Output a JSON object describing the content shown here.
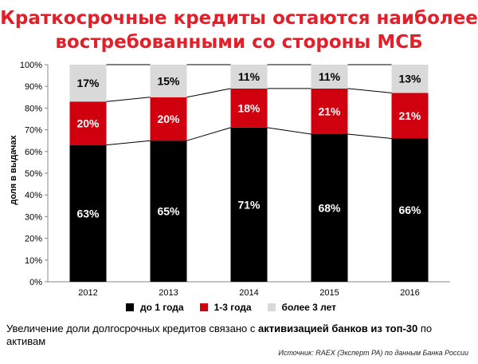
{
  "title": {
    "line1": "Краткосрочные кредиты остаются наиболее",
    "line2": "востребованными со стороны МСБ"
  },
  "chart_data": {
    "type": "bar",
    "stacked": true,
    "percent": true,
    "categories": [
      "2012",
      "2013",
      "2014",
      "2015",
      "2016"
    ],
    "series": [
      {
        "name": "до 1 года",
        "values": [
          63,
          65,
          71,
          68,
          66
        ],
        "color": "#000000",
        "label_color": "#ffffff"
      },
      {
        "name": "1-3 года",
        "values": [
          20,
          20,
          18,
          21,
          21
        ],
        "color": "#d0000e",
        "label_color": "#ffffff"
      },
      {
        "name": "более 3 лет",
        "values": [
          17,
          15,
          11,
          11,
          13
        ],
        "color": "#d9d9d9",
        "label_color": "#000000"
      }
    ],
    "ylabel": "доля в выдачах",
    "ylim": [
      0,
      100
    ],
    "yticks": [
      "0%",
      "10%",
      "20%",
      "30%",
      "40%",
      "50%",
      "60%",
      "70%",
      "80%",
      "90%",
      "100%"
    ],
    "connector_lines": true,
    "legend_position": "bottom"
  },
  "note": {
    "pre": "Увеличение  доли долгосрочных кредитов связано с ",
    "bold": "активизацией банков  из топ-30",
    "post": " по активам"
  },
  "source": "Источник: RAEX (Эксперт РА) по данным  Банка России"
}
